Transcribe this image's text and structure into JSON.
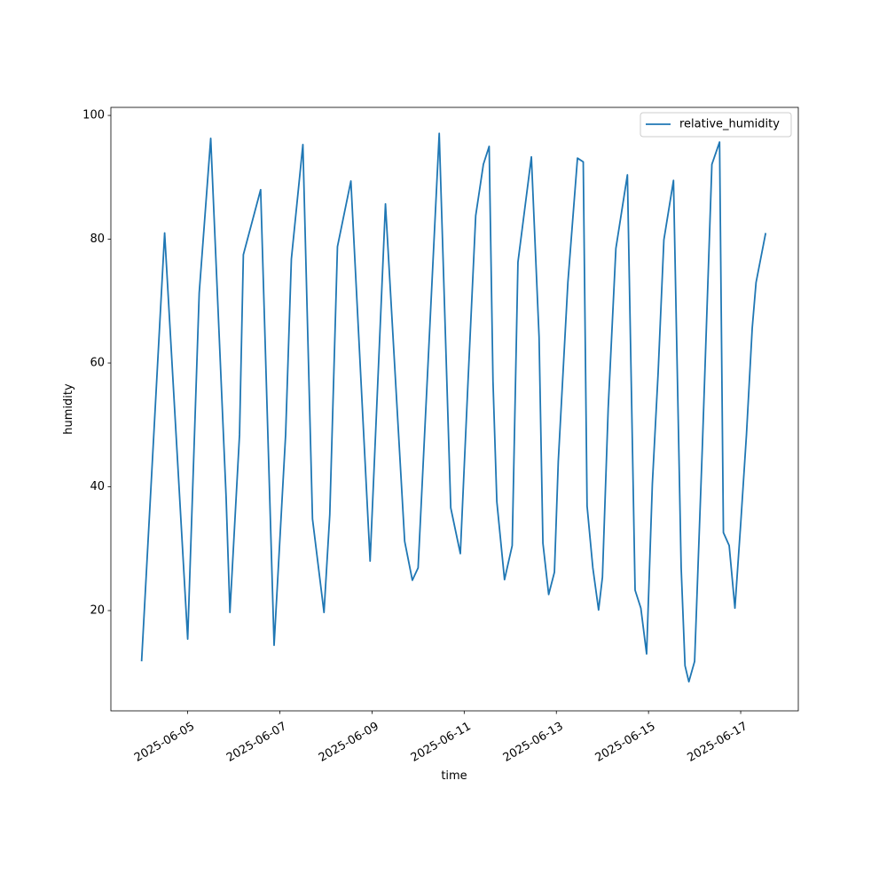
{
  "chart_data": {
    "type": "line",
    "x_label": "time",
    "y_label": "humidity",
    "x": [
      "2025-06-04T00:00",
      "2025-06-04T12:00",
      "2025-06-05T00:00",
      "2025-06-05T06:00",
      "2025-06-05T12:00",
      "2025-06-05T20:00",
      "2025-06-05T22:00",
      "2025-06-06T03:00",
      "2025-06-06T05:00",
      "2025-06-06T14:00",
      "2025-06-06T21:00",
      "2025-06-07T03:00",
      "2025-06-07T06:00",
      "2025-06-07T12:00",
      "2025-06-07T17:00",
      "2025-06-07T23:00",
      "2025-06-08T02:00",
      "2025-06-08T06:00",
      "2025-06-08T13:00",
      "2025-06-08T23:00",
      "2025-06-09T07:00",
      "2025-06-09T17:00",
      "2025-06-09T21:00",
      "2025-06-10T00:00",
      "2025-06-10T11:00",
      "2025-06-10T17:00",
      "2025-06-10T22:00",
      "2025-06-11T02:00",
      "2025-06-11T06:00",
      "2025-06-11T10:00",
      "2025-06-11T13:00",
      "2025-06-11T15:00",
      "2025-06-11T17:00",
      "2025-06-11T21:00",
      "2025-06-12T01:00",
      "2025-06-12T04:00",
      "2025-06-12T11:00",
      "2025-06-12T15:00",
      "2025-06-12T17:00",
      "2025-06-12T20:00",
      "2025-06-12T23:00",
      "2025-06-13T01:00",
      "2025-06-13T06:00",
      "2025-06-13T11:00",
      "2025-06-13T14:00",
      "2025-06-13T16:00",
      "2025-06-13T19:00",
      "2025-06-13T22:00",
      "2025-06-14T00:00",
      "2025-06-14T03:00",
      "2025-06-14T07:00",
      "2025-06-14T13:00",
      "2025-06-14T15:00",
      "2025-06-14T17:00",
      "2025-06-14T20:00",
      "2025-06-14T23:00",
      "2025-06-15T02:00",
      "2025-06-15T05:00",
      "2025-06-15T08:00",
      "2025-06-15T13:00",
      "2025-06-15T17:00",
      "2025-06-15T19:00",
      "2025-06-15T21:00",
      "2025-06-16T00:00",
      "2025-06-16T04:00",
      "2025-06-16T09:00",
      "2025-06-16T13:00",
      "2025-06-16T15:00",
      "2025-06-16T18:00",
      "2025-06-16T21:00",
      "2025-06-17T00:00",
      "2025-06-17T03:00",
      "2025-06-17T06:00",
      "2025-06-17T08:00",
      "2025-06-17T13:00"
    ],
    "series": [
      {
        "name": "relative_humidity",
        "color": "#1f77b4",
        "values": [
          11.8,
          81,
          15.4,
          71.3,
          96.3,
          38.4,
          19.7,
          48.4,
          77.5,
          88,
          14.4,
          48.4,
          76.8,
          95.3,
          34.8,
          19.7,
          35.5,
          78.8,
          89.4,
          28,
          85.7,
          31.2,
          24.9,
          26.9,
          97.1,
          36.6,
          29.2,
          57,
          83.8,
          92.1,
          95,
          57,
          37.6,
          25,
          30.5,
          76.3,
          93.3,
          64.2,
          30.9,
          22.6,
          26.2,
          44.1,
          73,
          93.1,
          92.5,
          36.9,
          26.9,
          20.1,
          25.4,
          52.7,
          78.5,
          90.4,
          57,
          23.3,
          20.4,
          13,
          40.5,
          58.4,
          79.9,
          89.5,
          26.9,
          11.1,
          8.5,
          11.8,
          46.2,
          92.1,
          95.7,
          32.6,
          30.5,
          20.4,
          34,
          48.4,
          65.6,
          73,
          81
        ]
      }
    ],
    "xlim": [
      "2025-06-03T08:00",
      "2025-06-18T06:00"
    ],
    "xticks": [
      "2025-06-05",
      "2025-06-07",
      "2025-06-09",
      "2025-06-11",
      "2025-06-13",
      "2025-06-15",
      "2025-06-17"
    ],
    "ylim": [
      3.8,
      101.3
    ],
    "yticks": [
      20,
      40,
      60,
      80,
      100
    ],
    "legend": "upper right"
  }
}
